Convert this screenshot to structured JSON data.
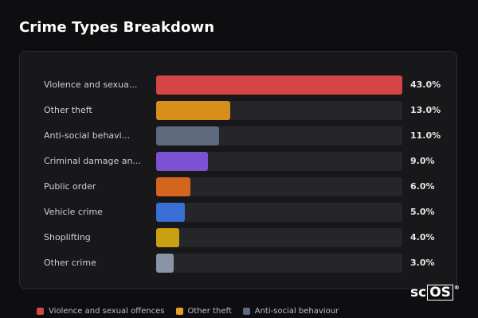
{
  "title": "Crime Types Breakdown",
  "watermark": {
    "prefix": "sc",
    "boxed": "OS",
    "mark": "®"
  },
  "chart_data": {
    "type": "bar",
    "orientation": "horizontal",
    "title": "Crime Types Breakdown",
    "xlim": [
      0,
      43
    ],
    "categories": [
      "Violence and sexua...",
      "Other theft",
      "Anti-social behavi...",
      "Criminal damage an...",
      "Public order",
      "Vehicle crime",
      "Shoplifting",
      "Other crime"
    ],
    "values": [
      43.0,
      13.0,
      11.0,
      9.0,
      6.0,
      5.0,
      4.0,
      3.0
    ],
    "value_labels": [
      "43.0%",
      "13.0%",
      "11.0%",
      "9.0%",
      "6.0%",
      "5.0%",
      "4.0%",
      "3.0%"
    ],
    "colors": [
      "#d64545",
      "#d68f1a",
      "#5e6a7d",
      "#7b52d4",
      "#d4651f",
      "#3a6fd6",
      "#c9a012",
      "#8a94a6"
    ],
    "legend": [
      {
        "label": "Violence and sexual offences",
        "color": "#d64545"
      },
      {
        "label": "Other theft",
        "color": "#e8a020"
      },
      {
        "label": "Anti-social behaviour",
        "color": "#5e6a7d"
      }
    ],
    "legend_position": "bottom"
  }
}
